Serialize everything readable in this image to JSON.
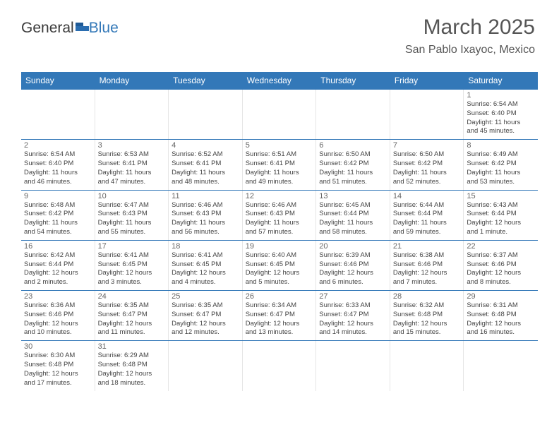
{
  "logo": {
    "text_general": "General",
    "text_blue": "Blue",
    "icon_color": "#2a6db0"
  },
  "header": {
    "title": "March 2025",
    "subtitle": "San Pablo Ixayoc, Mexico"
  },
  "colors": {
    "header_bg": "#3378b8",
    "header_text": "#ffffff",
    "rule": "#3378b8",
    "cell_border": "#e5e5e5",
    "daynum": "#666666",
    "body_text": "#444444",
    "title_text": "#555555"
  },
  "fonts": {
    "title_size": 30,
    "subtitle_size": 16,
    "dayhead_size": 12,
    "daynum_size": 11,
    "body_size": 9.5
  },
  "day_names": [
    "Sunday",
    "Monday",
    "Tuesday",
    "Wednesday",
    "Thursday",
    "Friday",
    "Saturday"
  ],
  "weeks": [
    [
      null,
      null,
      null,
      null,
      null,
      null,
      {
        "n": "1",
        "sr": "Sunrise: 6:54 AM",
        "ss": "Sunset: 6:40 PM",
        "dl1": "Daylight: 11 hours",
        "dl2": "and 45 minutes."
      }
    ],
    [
      {
        "n": "2",
        "sr": "Sunrise: 6:54 AM",
        "ss": "Sunset: 6:40 PM",
        "dl1": "Daylight: 11 hours",
        "dl2": "and 46 minutes."
      },
      {
        "n": "3",
        "sr": "Sunrise: 6:53 AM",
        "ss": "Sunset: 6:41 PM",
        "dl1": "Daylight: 11 hours",
        "dl2": "and 47 minutes."
      },
      {
        "n": "4",
        "sr": "Sunrise: 6:52 AM",
        "ss": "Sunset: 6:41 PM",
        "dl1": "Daylight: 11 hours",
        "dl2": "and 48 minutes."
      },
      {
        "n": "5",
        "sr": "Sunrise: 6:51 AM",
        "ss": "Sunset: 6:41 PM",
        "dl1": "Daylight: 11 hours",
        "dl2": "and 49 minutes."
      },
      {
        "n": "6",
        "sr": "Sunrise: 6:50 AM",
        "ss": "Sunset: 6:42 PM",
        "dl1": "Daylight: 11 hours",
        "dl2": "and 51 minutes."
      },
      {
        "n": "7",
        "sr": "Sunrise: 6:50 AM",
        "ss": "Sunset: 6:42 PM",
        "dl1": "Daylight: 11 hours",
        "dl2": "and 52 minutes."
      },
      {
        "n": "8",
        "sr": "Sunrise: 6:49 AM",
        "ss": "Sunset: 6:42 PM",
        "dl1": "Daylight: 11 hours",
        "dl2": "and 53 minutes."
      }
    ],
    [
      {
        "n": "9",
        "sr": "Sunrise: 6:48 AM",
        "ss": "Sunset: 6:42 PM",
        "dl1": "Daylight: 11 hours",
        "dl2": "and 54 minutes."
      },
      {
        "n": "10",
        "sr": "Sunrise: 6:47 AM",
        "ss": "Sunset: 6:43 PM",
        "dl1": "Daylight: 11 hours",
        "dl2": "and 55 minutes."
      },
      {
        "n": "11",
        "sr": "Sunrise: 6:46 AM",
        "ss": "Sunset: 6:43 PM",
        "dl1": "Daylight: 11 hours",
        "dl2": "and 56 minutes."
      },
      {
        "n": "12",
        "sr": "Sunrise: 6:46 AM",
        "ss": "Sunset: 6:43 PM",
        "dl1": "Daylight: 11 hours",
        "dl2": "and 57 minutes."
      },
      {
        "n": "13",
        "sr": "Sunrise: 6:45 AM",
        "ss": "Sunset: 6:44 PM",
        "dl1": "Daylight: 11 hours",
        "dl2": "and 58 minutes."
      },
      {
        "n": "14",
        "sr": "Sunrise: 6:44 AM",
        "ss": "Sunset: 6:44 PM",
        "dl1": "Daylight: 11 hours",
        "dl2": "and 59 minutes."
      },
      {
        "n": "15",
        "sr": "Sunrise: 6:43 AM",
        "ss": "Sunset: 6:44 PM",
        "dl1": "Daylight: 12 hours",
        "dl2": "and 1 minute."
      }
    ],
    [
      {
        "n": "16",
        "sr": "Sunrise: 6:42 AM",
        "ss": "Sunset: 6:44 PM",
        "dl1": "Daylight: 12 hours",
        "dl2": "and 2 minutes."
      },
      {
        "n": "17",
        "sr": "Sunrise: 6:41 AM",
        "ss": "Sunset: 6:45 PM",
        "dl1": "Daylight: 12 hours",
        "dl2": "and 3 minutes."
      },
      {
        "n": "18",
        "sr": "Sunrise: 6:41 AM",
        "ss": "Sunset: 6:45 PM",
        "dl1": "Daylight: 12 hours",
        "dl2": "and 4 minutes."
      },
      {
        "n": "19",
        "sr": "Sunrise: 6:40 AM",
        "ss": "Sunset: 6:45 PM",
        "dl1": "Daylight: 12 hours",
        "dl2": "and 5 minutes."
      },
      {
        "n": "20",
        "sr": "Sunrise: 6:39 AM",
        "ss": "Sunset: 6:46 PM",
        "dl1": "Daylight: 12 hours",
        "dl2": "and 6 minutes."
      },
      {
        "n": "21",
        "sr": "Sunrise: 6:38 AM",
        "ss": "Sunset: 6:46 PM",
        "dl1": "Daylight: 12 hours",
        "dl2": "and 7 minutes."
      },
      {
        "n": "22",
        "sr": "Sunrise: 6:37 AM",
        "ss": "Sunset: 6:46 PM",
        "dl1": "Daylight: 12 hours",
        "dl2": "and 8 minutes."
      }
    ],
    [
      {
        "n": "23",
        "sr": "Sunrise: 6:36 AM",
        "ss": "Sunset: 6:46 PM",
        "dl1": "Daylight: 12 hours",
        "dl2": "and 10 minutes."
      },
      {
        "n": "24",
        "sr": "Sunrise: 6:35 AM",
        "ss": "Sunset: 6:47 PM",
        "dl1": "Daylight: 12 hours",
        "dl2": "and 11 minutes."
      },
      {
        "n": "25",
        "sr": "Sunrise: 6:35 AM",
        "ss": "Sunset: 6:47 PM",
        "dl1": "Daylight: 12 hours",
        "dl2": "and 12 minutes."
      },
      {
        "n": "26",
        "sr": "Sunrise: 6:34 AM",
        "ss": "Sunset: 6:47 PM",
        "dl1": "Daylight: 12 hours",
        "dl2": "and 13 minutes."
      },
      {
        "n": "27",
        "sr": "Sunrise: 6:33 AM",
        "ss": "Sunset: 6:47 PM",
        "dl1": "Daylight: 12 hours",
        "dl2": "and 14 minutes."
      },
      {
        "n": "28",
        "sr": "Sunrise: 6:32 AM",
        "ss": "Sunset: 6:48 PM",
        "dl1": "Daylight: 12 hours",
        "dl2": "and 15 minutes."
      },
      {
        "n": "29",
        "sr": "Sunrise: 6:31 AM",
        "ss": "Sunset: 6:48 PM",
        "dl1": "Daylight: 12 hours",
        "dl2": "and 16 minutes."
      }
    ],
    [
      {
        "n": "30",
        "sr": "Sunrise: 6:30 AM",
        "ss": "Sunset: 6:48 PM",
        "dl1": "Daylight: 12 hours",
        "dl2": "and 17 minutes."
      },
      {
        "n": "31",
        "sr": "Sunrise: 6:29 AM",
        "ss": "Sunset: 6:48 PM",
        "dl1": "Daylight: 12 hours",
        "dl2": "and 18 minutes."
      },
      null,
      null,
      null,
      null,
      null
    ]
  ]
}
